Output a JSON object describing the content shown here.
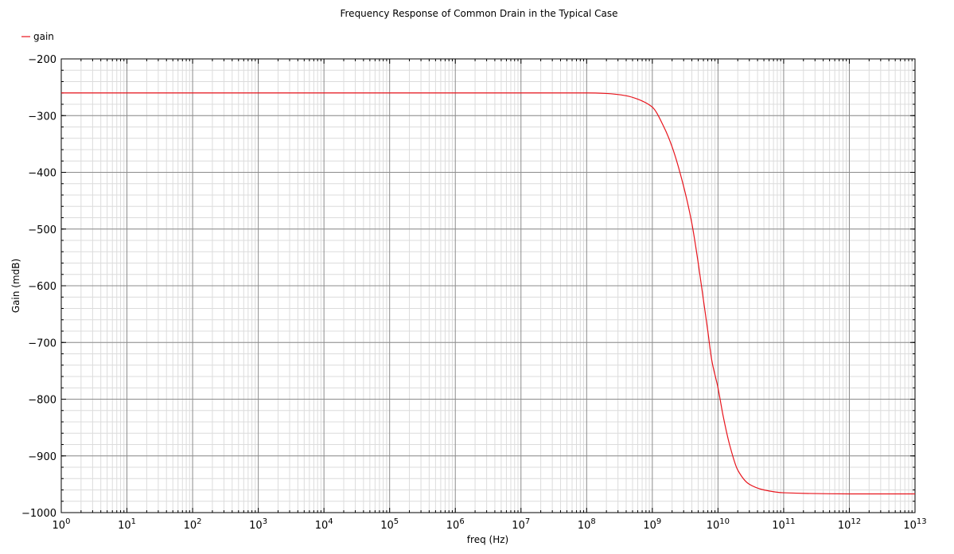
{
  "chart_data": {
    "type": "line",
    "title": "Frequency Response of Common Drain in the Typical Case",
    "xlabel": "freq (Hz)",
    "ylabel": "Gain (mdB)",
    "x_scale": "log",
    "xlim": [
      1,
      10000000000000
    ],
    "ylim": [
      -1000,
      -200
    ],
    "x_tick_base": "10",
    "x_tick_exponents": [
      "0",
      "1",
      "2",
      "3",
      "4",
      "5",
      "6",
      "7",
      "8",
      "9",
      "10",
      "11",
      "12",
      "13"
    ],
    "y_ticks": [
      -1000,
      -900,
      -800,
      -700,
      -600,
      -500,
      -400,
      -300,
      -200
    ],
    "y_tick_labels": [
      "−1000",
      "−900",
      "−800",
      "−700",
      "−600",
      "−500",
      "−400",
      "−300",
      "−200"
    ],
    "grid": true,
    "legend_position": "top-left",
    "colors": {
      "gain": "#e8141c",
      "major_grid": "#8c8c8c",
      "minor_grid": "#dcdcdc"
    },
    "series": [
      {
        "name": "gain",
        "x": [
          1,
          10,
          100,
          1000,
          10000,
          100000,
          1000000,
          10000000,
          100000000,
          200000000,
          400000000,
          600000000,
          1000000000,
          1500000000,
          2000000000,
          3000000000,
          4000000000,
          5000000000,
          6000000000,
          7000000000,
          8000000000,
          10000000000,
          12000000000,
          15000000000,
          20000000000,
          30000000000,
          50000000000,
          100000000000,
          1000000000000,
          10000000000000
        ],
        "y": [
          -260,
          -260,
          -260,
          -260,
          -260,
          -260,
          -260,
          -260,
          -260,
          -261,
          -265,
          -271,
          -285,
          -320,
          -355,
          -425,
          -490,
          -560,
          -625,
          -680,
          -730,
          -780,
          -830,
          -880,
          -925,
          -950,
          -960,
          -965,
          -967,
          -967
        ]
      }
    ]
  }
}
